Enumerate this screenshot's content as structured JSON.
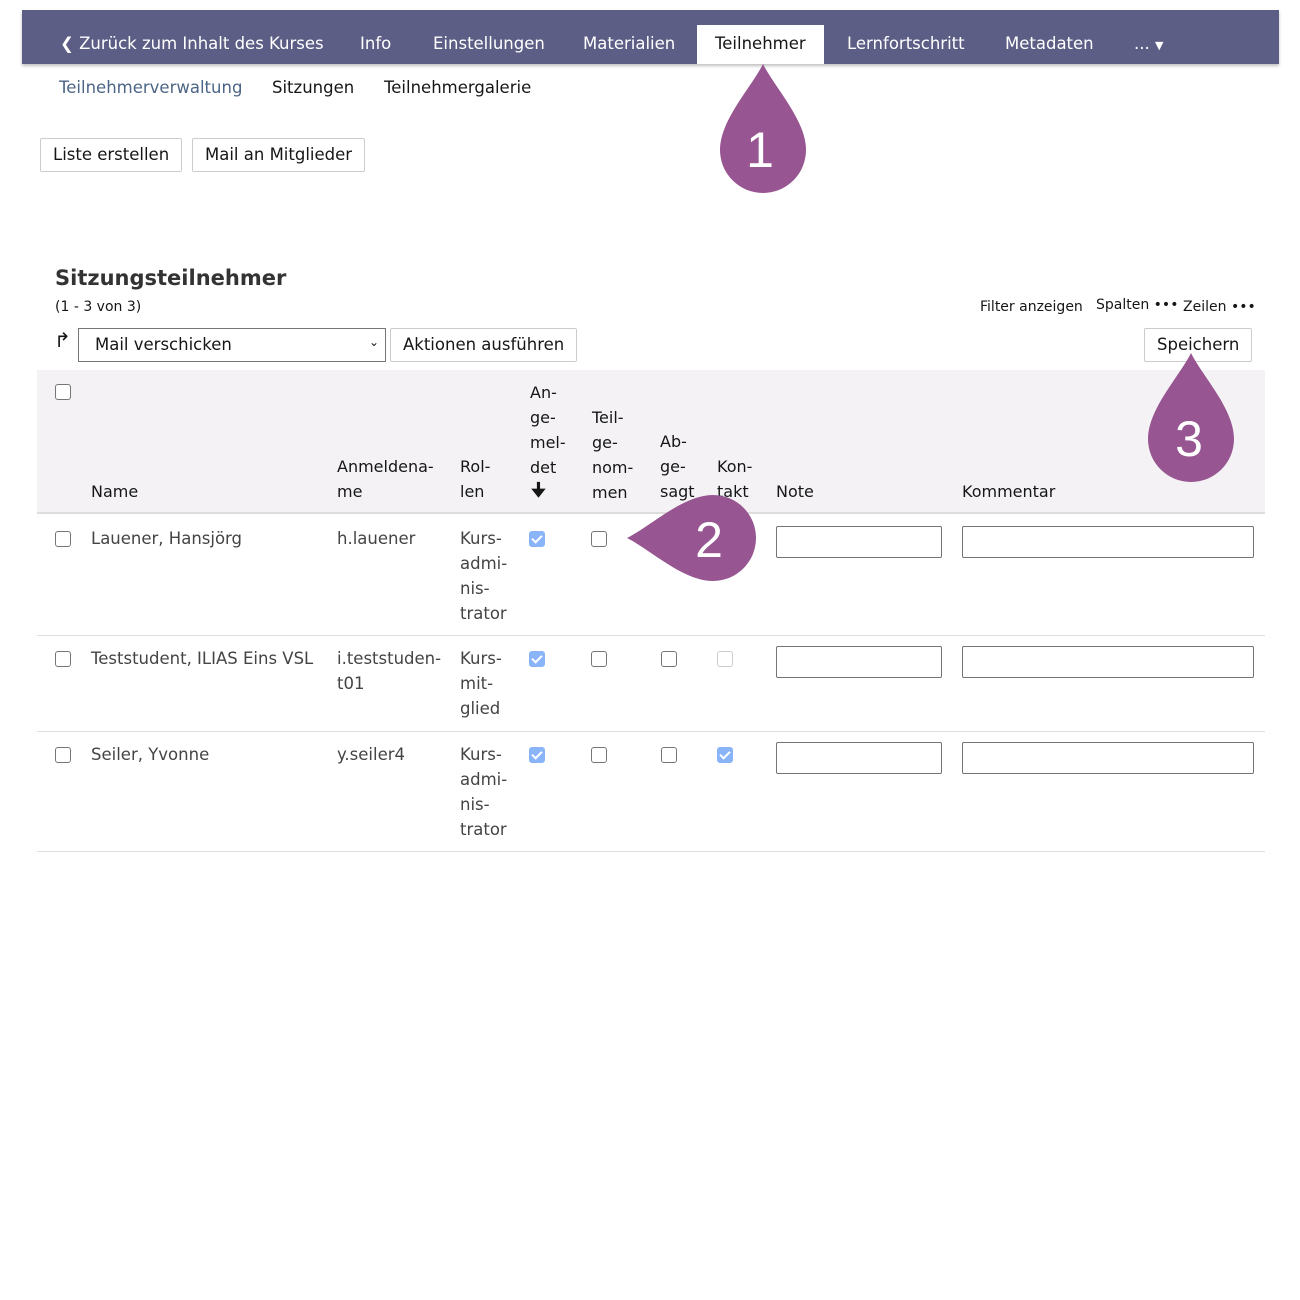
{
  "nav": {
    "back": "Zurück zum Inhalt des Kurses",
    "tabs": [
      "Info",
      "Einstellungen",
      "Materialien",
      "Teilnehmer",
      "Lernfortschritt",
      "Metadaten",
      "..."
    ],
    "active": "Teilnehmer"
  },
  "subtabs": [
    "Teilnehmerverwaltung",
    "Sitzungen",
    "Teilnehmergalerie"
  ],
  "toolbar": {
    "list": "Liste erstellen",
    "mail": "Mail an Mitglieder"
  },
  "table": {
    "title": "Sitzungsteilnehmer",
    "count": "(1 - 3 von 3)",
    "filter": "Filter anzeigen",
    "columns_menu": "Spalten",
    "rows_menu": "Zeilen",
    "action_select": "Mail verschicken",
    "action_button": "Aktionen ausführen",
    "save": "Speichern",
    "headers": {
      "name": "Name",
      "login": "Anmeldena-\nme",
      "roles": "Rol-\nlen",
      "registered": "An-\nge-\nmel-\ndet",
      "participated": "Teil-\nge-\nnom-\nmen",
      "excused": "Ab-\nge-\nsagt",
      "contact": "Kon-\ntakt",
      "note": "Note",
      "comment": "Kommentar"
    },
    "sort": "Angemeldet, descending",
    "rows": [
      {
        "name": "Lauener, Hansjörg",
        "login": "h.lauener",
        "role": "Kurs-\nadmi-\nnis-\ntrator",
        "registered": true,
        "participated": false,
        "note": "",
        "comment": ""
      },
      {
        "name": "Teststudent, ILIAS Eins VSL",
        "login": "i.teststuden-\nt01",
        "role": "Kurs-\nmit-\nglied",
        "registered": true,
        "participated": false,
        "excused": false,
        "contact": false,
        "note": "",
        "comment": ""
      },
      {
        "name": "Seiler, Yvonne",
        "login": "y.seiler4",
        "role": "Kurs-\nadmi-\nnis-\ntrator",
        "registered": true,
        "participated": false,
        "excused": false,
        "contact": true,
        "note": "",
        "comment": ""
      }
    ]
  },
  "annotations": [
    "1",
    "2",
    "3"
  ],
  "colors": {
    "nav": "#5c5e85",
    "marker": "#975591",
    "link": "#4c6586",
    "checked": "#8ab4f8"
  }
}
